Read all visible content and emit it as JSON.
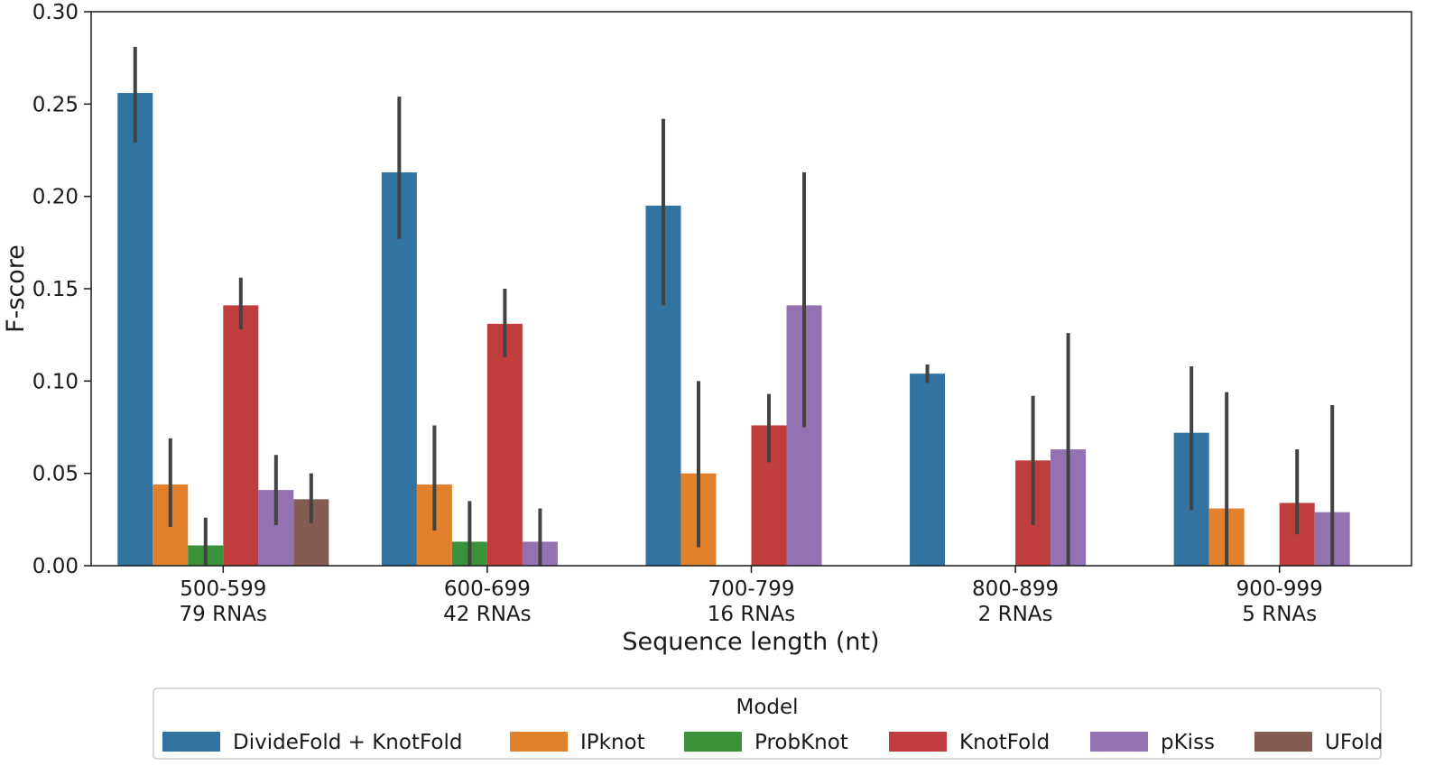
{
  "chart_data": {
    "type": "bar",
    "title": "",
    "xlabel": "Sequence length (nt)",
    "ylabel": "F-score",
    "ylim": [
      0,
      0.3
    ],
    "yticks": [
      "0.00",
      "0.05",
      "0.10",
      "0.15",
      "0.20",
      "0.25",
      "0.30"
    ],
    "grid": false,
    "categories": [
      {
        "line1": "500-599",
        "line2": "79 RNAs"
      },
      {
        "line1": "600-699",
        "line2": "42 RNAs"
      },
      {
        "line1": "700-799",
        "line2": "16 RNAs"
      },
      {
        "line1": "800-899",
        "line2": "2 RNAs"
      },
      {
        "line1": "900-999",
        "line2": "5 RNAs"
      }
    ],
    "legend": {
      "title": "Model",
      "placement": "bottom-center"
    },
    "series": [
      {
        "name": "DivideFold + KnotFold",
        "color": "#3274a1",
        "values": [
          0.256,
          0.213,
          0.195,
          0.104,
          0.072
        ],
        "err_low": [
          0.229,
          0.177,
          0.141,
          0.099,
          0.03
        ],
        "err_high": [
          0.281,
          0.254,
          0.242,
          0.109,
          0.108
        ]
      },
      {
        "name": "IPknot",
        "color": "#e1812c",
        "values": [
          0.044,
          0.044,
          0.05,
          null,
          0.031
        ],
        "err_low": [
          0.021,
          0.019,
          0.01,
          null,
          0.0
        ],
        "err_high": [
          0.069,
          0.076,
          0.1,
          null,
          0.094
        ]
      },
      {
        "name": "ProbKnot",
        "color": "#3a923a",
        "values": [
          0.011,
          0.013,
          null,
          null,
          null
        ],
        "err_low": [
          0.0,
          0.0,
          null,
          null,
          null
        ],
        "err_high": [
          0.026,
          0.035,
          null,
          null,
          null
        ]
      },
      {
        "name": "KnotFold",
        "color": "#c03d3e",
        "values": [
          0.141,
          0.131,
          0.076,
          0.057,
          0.034
        ],
        "err_low": [
          0.128,
          0.113,
          0.056,
          0.022,
          0.017
        ],
        "err_high": [
          0.156,
          0.15,
          0.093,
          0.092,
          0.063
        ]
      },
      {
        "name": "pKiss",
        "color": "#9372b2",
        "values": [
          0.041,
          0.013,
          0.141,
          0.063,
          0.029
        ],
        "err_low": [
          0.022,
          0.0,
          0.075,
          0.0,
          0.0
        ],
        "err_high": [
          0.06,
          0.031,
          0.213,
          0.126,
          0.087
        ]
      },
      {
        "name": "UFold",
        "color": "#845b53",
        "values": [
          0.036,
          null,
          null,
          null,
          null
        ],
        "err_low": [
          0.023,
          null,
          null,
          null,
          null
        ],
        "err_high": [
          0.05,
          null,
          null,
          null,
          null
        ]
      }
    ]
  }
}
